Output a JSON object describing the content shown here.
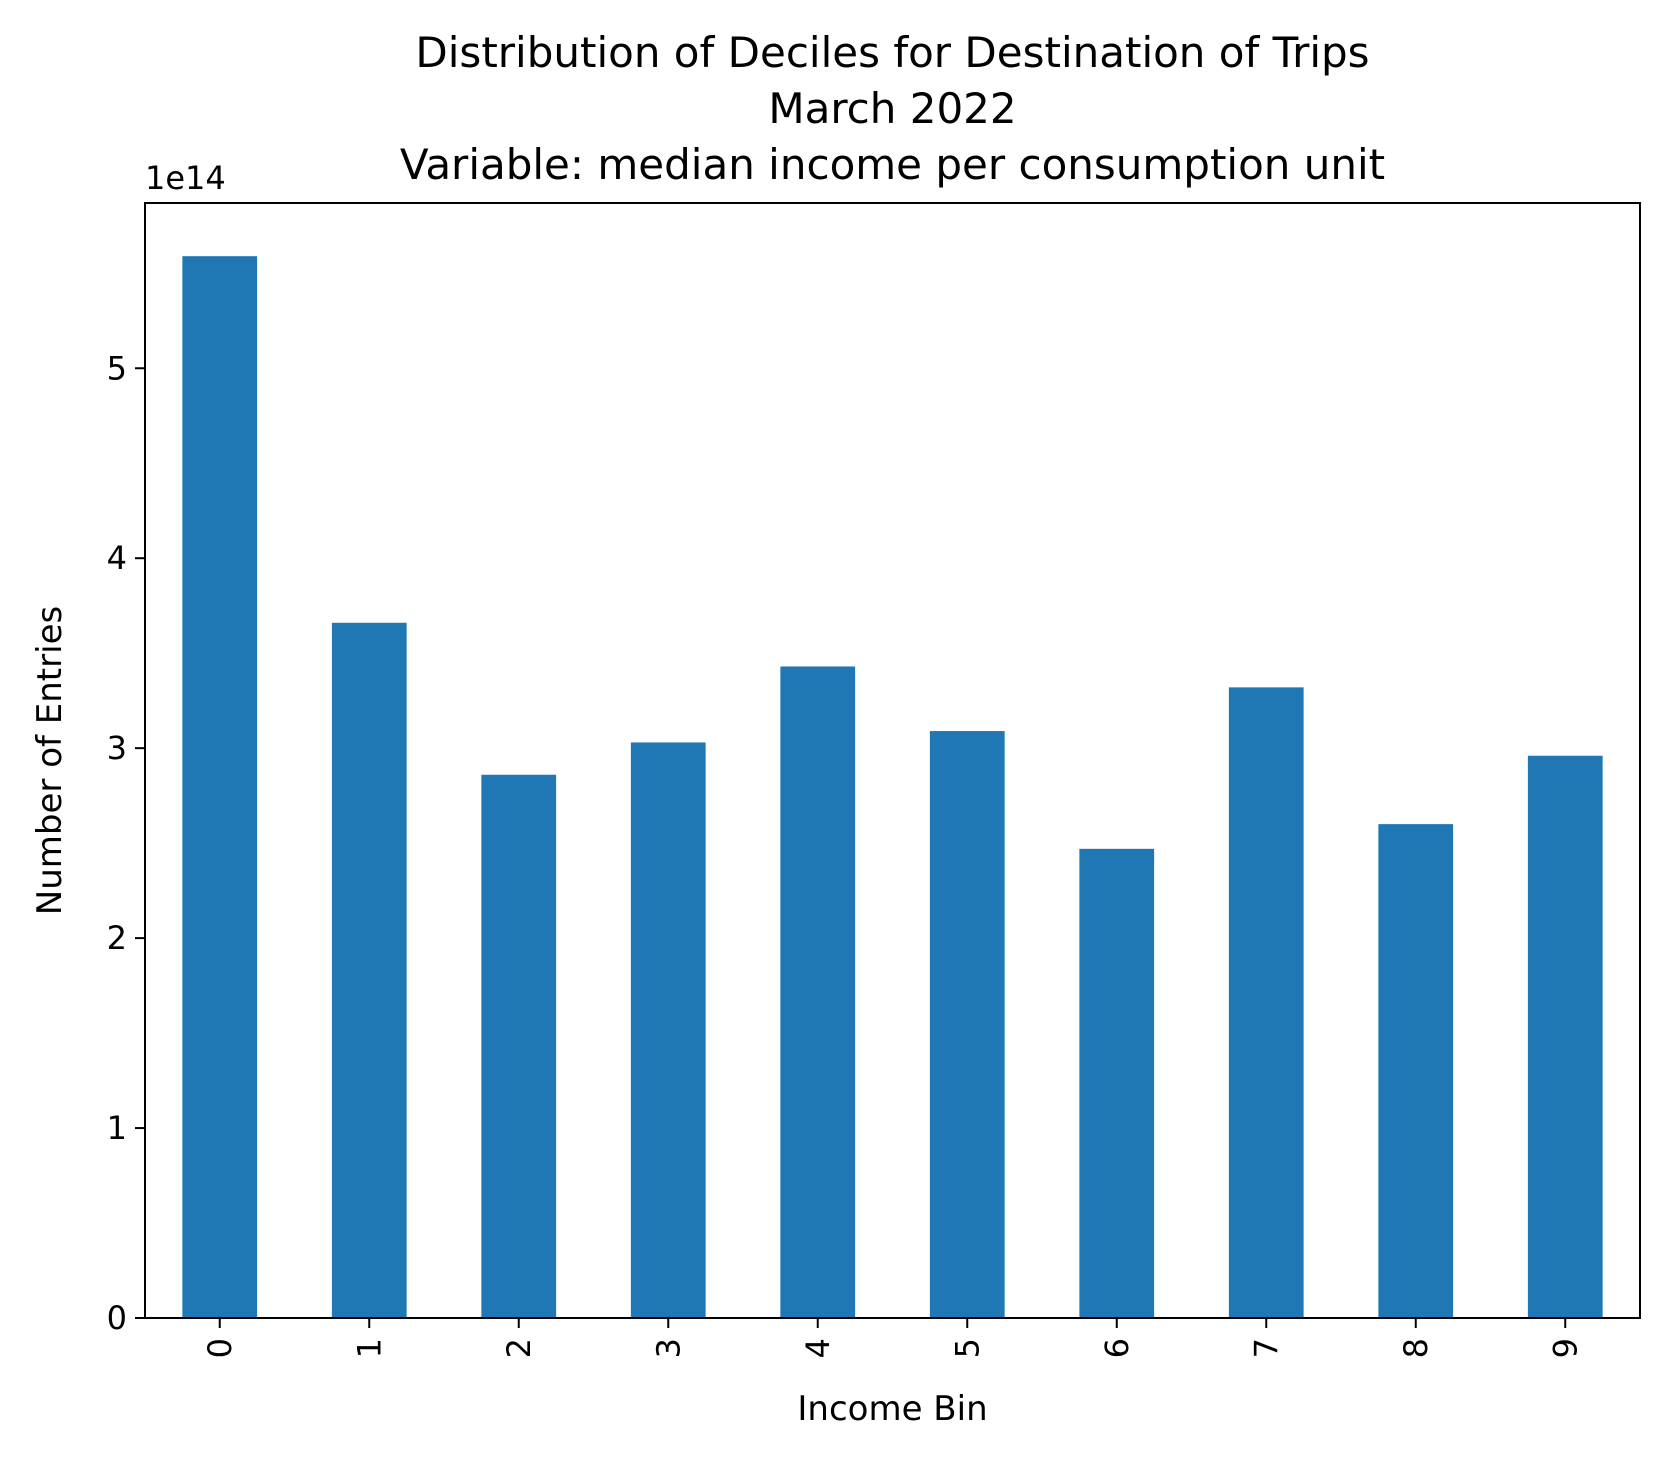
{
  "chart_data": {
    "type": "bar",
    "title_lines": [
      "Distribution of Deciles for Destination of Trips",
      "March 2022",
      "Variable: median income per consumption unit"
    ],
    "xlabel": "Income Bin",
    "ylabel": "Number of Entries",
    "y_offset_label": "1e14",
    "categories": [
      "0",
      "1",
      "2",
      "3",
      "4",
      "5",
      "6",
      "7",
      "8",
      "9"
    ],
    "values": [
      559000000000000.0,
      366000000000000.0,
      286000000000000.0,
      303000000000000.0,
      343000000000000.0,
      309000000000000.0,
      247000000000000.0,
      332000000000000.0,
      260000000000000.0,
      296000000000000.0
    ],
    "y_ticks": [
      0,
      100000000000000.0,
      200000000000000.0,
      300000000000000.0,
      400000000000000.0,
      500000000000000.0
    ],
    "y_tick_labels": [
      "0",
      "1",
      "2",
      "3",
      "4",
      "5"
    ],
    "ylim": [
      0,
      587000000000000.0
    ],
    "bar_color": "#1f77b4",
    "grid": false,
    "legend": "none"
  }
}
